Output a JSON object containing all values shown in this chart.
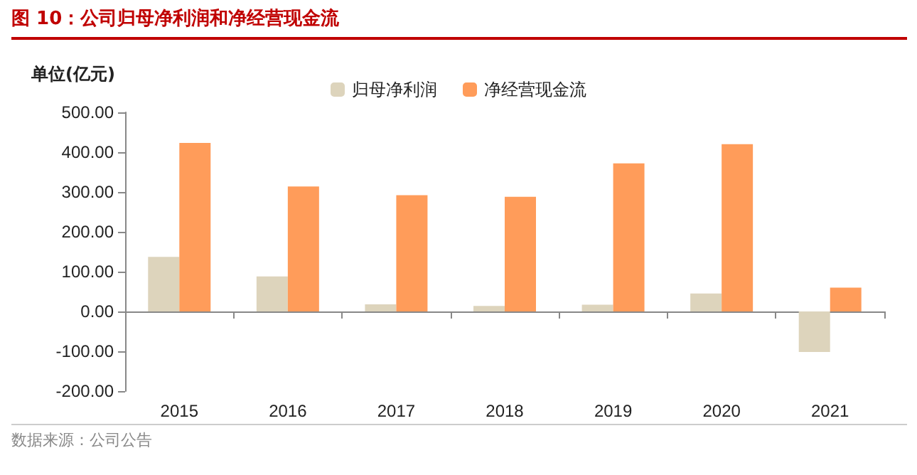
{
  "chart_data": {
    "type": "bar",
    "title": "图 10：公司归母净利润和净经营现金流",
    "ylabel": "单位(亿元)",
    "categories": [
      "2015",
      "2016",
      "2017",
      "2018",
      "2019",
      "2020",
      "2021"
    ],
    "series": [
      {
        "name": "归母净利润",
        "color": "#ddd4bc",
        "values": [
          137,
          88,
          18,
          14,
          17,
          45,
          -102
        ]
      },
      {
        "name": "净经营现金流",
        "color": "#ff9c5a",
        "values": [
          423,
          314,
          292,
          288,
          372,
          420,
          60
        ]
      }
    ],
    "ylim": [
      -200,
      500
    ],
    "yticks": [
      {
        "value": -200,
        "label": "-200.00"
      },
      {
        "value": -100,
        "label": "-100.00"
      },
      {
        "value": 0,
        "label": "0.00"
      },
      {
        "value": 100,
        "label": "100.00"
      },
      {
        "value": 200,
        "label": "200.00"
      },
      {
        "value": 300,
        "label": "300.00"
      },
      {
        "value": 400,
        "label": "400.00"
      },
      {
        "value": 500,
        "label": "500.00"
      }
    ],
    "legend": "top",
    "annotations": [
      "数据来源：公司公告"
    ]
  }
}
